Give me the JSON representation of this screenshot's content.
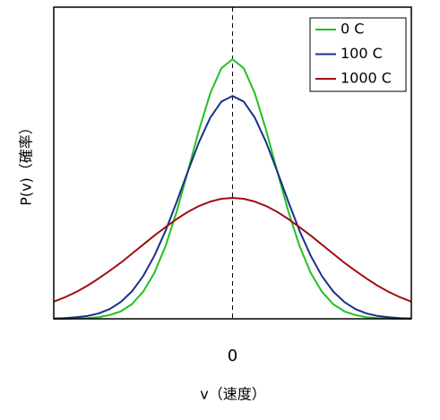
{
  "chart_data": {
    "type": "line",
    "x_label": "v（速度）",
    "y_label": "P(v)（確率）",
    "x": [
      -4,
      -3.75,
      -3.5,
      -3.25,
      -3,
      -2.75,
      -2.5,
      -2.25,
      -2,
      -1.75,
      -1.5,
      -1.25,
      -1,
      -0.75,
      -0.5,
      -0.25,
      0,
      0.25,
      0.5,
      0.75,
      1,
      1.25,
      1.5,
      1.75,
      2,
      2.25,
      2.5,
      2.75,
      3,
      3.25,
      3.5,
      3.75,
      4
    ],
    "series": [
      {
        "name": "0 C",
        "color": "#22c022",
        "values": [
          0,
          0,
          0.001,
          0.002,
          0.005,
          0.012,
          0.024,
          0.047,
          0.087,
          0.147,
          0.233,
          0.344,
          0.473,
          0.606,
          0.723,
          0.804,
          0.833,
          0.804,
          0.723,
          0.606,
          0.473,
          0.344,
          0.233,
          0.147,
          0.087,
          0.047,
          0.024,
          0.012,
          0.005,
          0.002,
          0.001,
          0,
          0
        ]
      },
      {
        "name": "100 C",
        "color": "#1a2f8a",
        "values": [
          0.001,
          0.002,
          0.005,
          0.009,
          0.017,
          0.031,
          0.054,
          0.088,
          0.137,
          0.202,
          0.282,
          0.375,
          0.473,
          0.567,
          0.645,
          0.697,
          0.715,
          0.697,
          0.645,
          0.567,
          0.473,
          0.375,
          0.282,
          0.202,
          0.137,
          0.088,
          0.054,
          0.031,
          0.017,
          0.009,
          0.005,
          0.002,
          0.001
        ]
      },
      {
        "name": "1000 C",
        "color": "#a01010",
        "values": [
          0.055,
          0.069,
          0.086,
          0.106,
          0.129,
          0.154,
          0.18,
          0.209,
          0.238,
          0.267,
          0.294,
          0.32,
          0.343,
          0.362,
          0.376,
          0.385,
          0.388,
          0.385,
          0.376,
          0.362,
          0.343,
          0.32,
          0.294,
          0.267,
          0.238,
          0.209,
          0.18,
          0.154,
          0.129,
          0.106,
          0.086,
          0.069,
          0.055
        ]
      }
    ],
    "xlim": [
      -4,
      4
    ],
    "xticks": [
      0
    ],
    "ylim": [
      0,
      1
    ],
    "grid": true,
    "legend": "upper right"
  }
}
